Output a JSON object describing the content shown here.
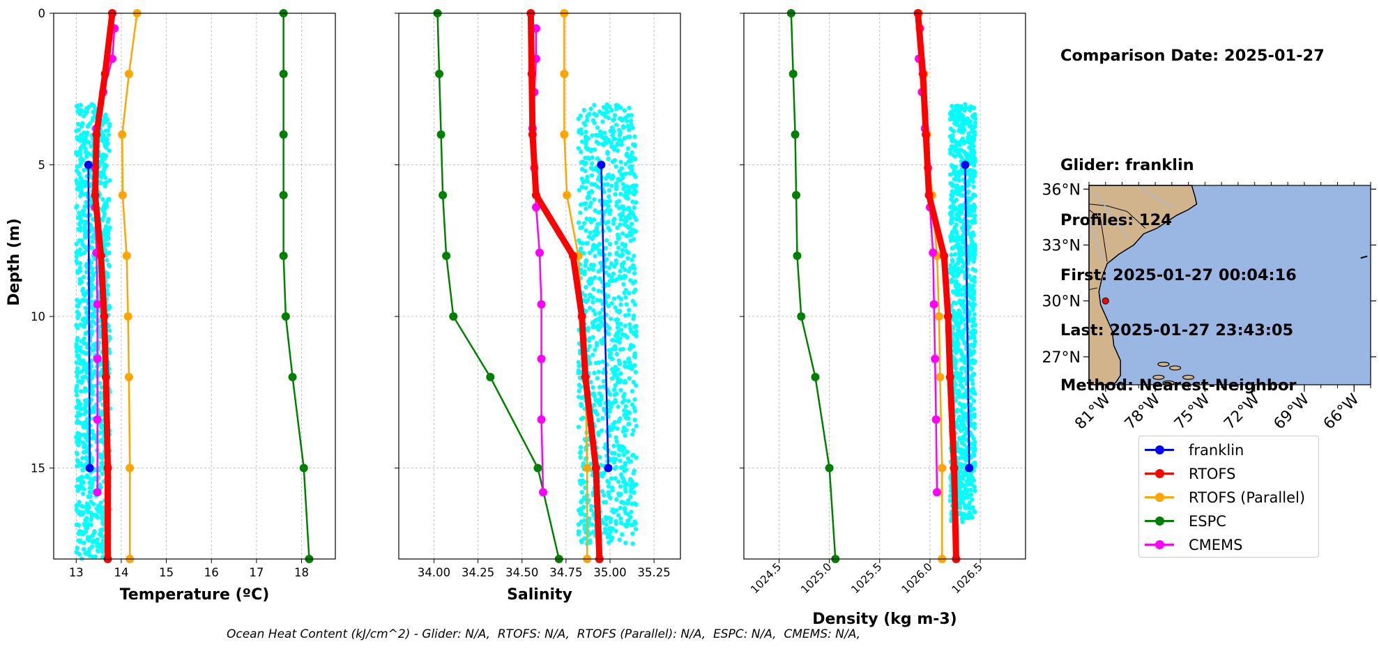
{
  "info": {
    "comparison_date": "Comparison Date: 2025-01-27",
    "glider": "Glider: franklin",
    "profiles": "Profiles: 124",
    "first": "First: 2025-01-27 00:04:16",
    "last": "Last: 2025-01-27 23:43:05",
    "method": "Method: Nearest-Neighbor"
  },
  "footnote": "Ocean Heat Content (kJ/cm^2) - Glider: N/A,  RTOFS: N/A,  RTOFS (Parallel): N/A,  ESPC: N/A,  CMEMS: N/A,",
  "legend": [
    {
      "name": "franklin",
      "color": "#0000ff"
    },
    {
      "name": "RTOFS",
      "color": "#ff0000"
    },
    {
      "name": "RTOFS (Parallel)",
      "color": "#ffa500"
    },
    {
      "name": "ESPC",
      "color": "#008000"
    },
    {
      "name": "CMEMS",
      "color": "#ff00ff"
    }
  ],
  "colors": {
    "glider_scatter": "#00ffff",
    "land": "#d2b48c",
    "ocean": "#9ab6e2"
  },
  "chart_data": [
    {
      "type": "line",
      "xlabel": "Temperature (ºC)",
      "ylabel": "Depth (m)",
      "xlim": [
        12.5,
        18.75
      ],
      "ylim": [
        18,
        0
      ],
      "xticks": [
        "13",
        "14",
        "15",
        "16",
        "17",
        "18"
      ],
      "yticks": [
        "0",
        "5",
        "10",
        "15"
      ],
      "grid": true,
      "glider_scatter": {
        "x_range": [
          13.0,
          13.75
        ],
        "depth_range": [
          3.0,
          18.0
        ]
      },
      "series": [
        {
          "name": "franklin",
          "depth": [
            5,
            15
          ],
          "x": [
            13.27,
            13.3
          ]
        },
        {
          "name": "RTOFS",
          "depth": [
            0,
            2,
            4,
            6,
            8,
            10,
            12,
            15,
            18
          ],
          "x": [
            13.8,
            13.64,
            13.45,
            13.42,
            13.55,
            13.62,
            13.66,
            13.7,
            13.7
          ]
        },
        {
          "name": "RTOFS (Parallel)",
          "depth": [
            0,
            2,
            4,
            6,
            8,
            10,
            12,
            15,
            18
          ],
          "x": [
            14.35,
            14.17,
            14.02,
            14.03,
            14.12,
            14.15,
            14.17,
            14.19,
            14.19
          ]
        },
        {
          "name": "ESPC",
          "depth": [
            0,
            2,
            4,
            6,
            8,
            10,
            12,
            15,
            18
          ],
          "x": [
            17.6,
            17.6,
            17.6,
            17.6,
            17.6,
            17.65,
            17.8,
            18.05,
            18.17
          ]
        },
        {
          "name": "CMEMS",
          "depth": [
            0.5,
            1.5,
            2.6,
            3.8,
            5.1,
            6.4,
            7.9,
            9.6,
            11.4,
            13.4,
            15.8
          ],
          "x": [
            13.85,
            13.8,
            13.6,
            13.45,
            13.42,
            13.42,
            13.45,
            13.47,
            13.47,
            13.47,
            13.47
          ]
        }
      ]
    },
    {
      "type": "line",
      "xlabel": "Salinity",
      "ylabel": "",
      "xlim": [
        33.8,
        35.4
      ],
      "ylim": [
        18,
        0
      ],
      "xticks": [
        "34.00",
        "34.25",
        "34.50",
        "34.75",
        "35.00",
        "35.25"
      ],
      "grid": true,
      "glider_scatter": {
        "x_range": [
          34.82,
          35.15
        ],
        "depth_range": [
          3.0,
          17.5
        ]
      },
      "series": [
        {
          "name": "franklin",
          "depth": [
            5,
            15
          ],
          "x": [
            34.95,
            34.99
          ]
        },
        {
          "name": "RTOFS",
          "depth": [
            0,
            2,
            4,
            6,
            8,
            10,
            12,
            15,
            18
          ],
          "x": [
            34.55,
            34.555,
            34.56,
            34.58,
            34.79,
            34.84,
            34.86,
            34.92,
            34.94
          ]
        },
        {
          "name": "RTOFS (Parallel)",
          "depth": [
            0,
            2,
            4,
            6,
            8,
            10,
            12,
            15,
            18
          ],
          "x": [
            34.74,
            34.74,
            34.74,
            34.755,
            34.82,
            34.84,
            34.86,
            34.87,
            34.87
          ]
        },
        {
          "name": "ESPC",
          "depth": [
            0,
            2,
            4,
            6,
            8,
            10,
            12,
            15,
            18
          ],
          "x": [
            34.02,
            34.03,
            34.04,
            34.05,
            34.07,
            34.11,
            34.32,
            34.59,
            34.71
          ]
        },
        {
          "name": "CMEMS",
          "depth": [
            0.5,
            1.5,
            2.6,
            3.8,
            5.1,
            6.4,
            7.9,
            9.6,
            11.4,
            13.4,
            15.8
          ],
          "x": [
            34.58,
            34.58,
            34.57,
            34.56,
            34.57,
            34.58,
            34.6,
            34.61,
            34.61,
            34.61,
            34.62
          ]
        }
      ]
    },
    {
      "type": "line",
      "xlabel": "Density (kg m-3)",
      "ylabel": "",
      "xlim": [
        1024.15,
        1026.95
      ],
      "ylim": [
        18,
        0
      ],
      "xticks": [
        "1024.5",
        "1025.0",
        "1025.5",
        "1026.0",
        "1026.5"
      ],
      "grid": true,
      "glider_scatter": {
        "x_range": [
          1026.2,
          1026.45
        ],
        "depth_range": [
          3.0,
          16.8
        ]
      },
      "series": [
        {
          "name": "franklin",
          "depth": [
            5,
            15
          ],
          "x": [
            1026.35,
            1026.39
          ]
        },
        {
          "name": "RTOFS",
          "depth": [
            0,
            2,
            4,
            6,
            8,
            10,
            12,
            15,
            18
          ],
          "x": [
            1025.88,
            1025.93,
            1025.96,
            1025.99,
            1026.14,
            1026.18,
            1026.2,
            1026.24,
            1026.26
          ]
        },
        {
          "name": "RTOFS (Parallel)",
          "depth": [
            0,
            2,
            4,
            6,
            8,
            10,
            12,
            15,
            18
          ],
          "x": [
            1025.89,
            1025.94,
            1025.97,
            1026.02,
            1026.07,
            1026.09,
            1026.1,
            1026.12,
            1026.12
          ]
        },
        {
          "name": "ESPC",
          "depth": [
            0,
            2,
            4,
            6,
            8,
            10,
            12,
            15,
            18
          ],
          "x": [
            1024.62,
            1024.64,
            1024.66,
            1024.67,
            1024.68,
            1024.72,
            1024.86,
            1025.0,
            1025.06
          ]
        },
        {
          "name": "CMEMS",
          "depth": [
            0.5,
            1.5,
            2.6,
            3.8,
            5.1,
            6.4,
            7.9,
            9.6,
            11.4,
            13.4,
            15.8
          ],
          "x": [
            1025.9,
            1025.89,
            1025.92,
            1025.95,
            1025.98,
            1026.0,
            1026.03,
            1026.04,
            1026.05,
            1026.06,
            1026.07
          ]
        }
      ]
    }
  ],
  "map": {
    "lat_ticks": [
      "27°N",
      "30°N",
      "33°N",
      "36°N"
    ],
    "lat_values": [
      27,
      30,
      33,
      36
    ],
    "lon_ticks": [
      "81°W",
      "78°W",
      "75°W",
      "72°W",
      "69°W",
      "66°W"
    ],
    "lon_values": [
      -81,
      -78,
      -75,
      -72,
      -69,
      -66
    ],
    "extent": {
      "lon": [
        -82,
        -65
      ],
      "lat": [
        25.5,
        36.2
      ]
    },
    "glider_location": {
      "lon": -81.0,
      "lat": 30.0
    }
  }
}
